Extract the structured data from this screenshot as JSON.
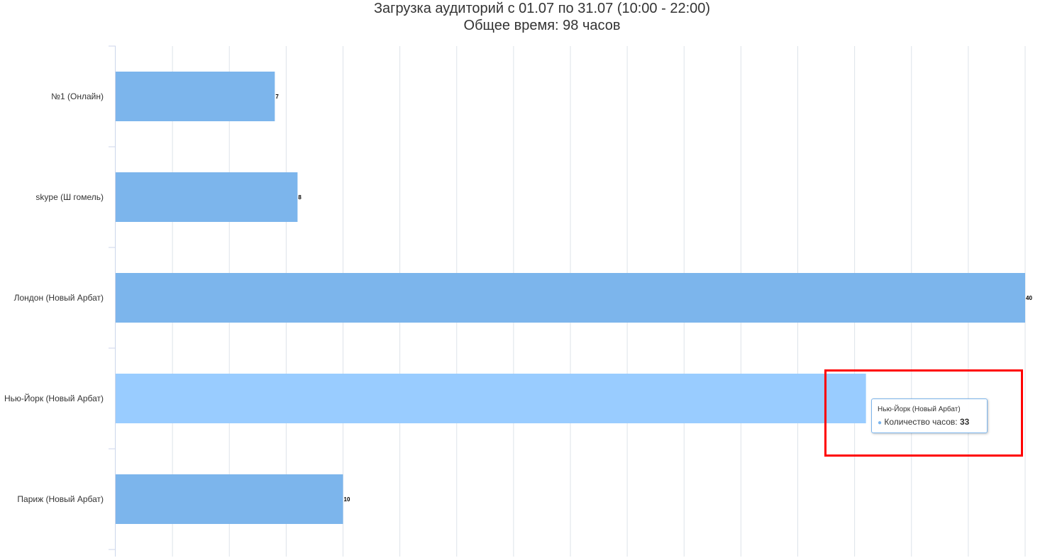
{
  "title_line1": "Загрузка аудиторий с 01.07 по 31.07 (10:00 - 22:00)",
  "title_line2": "Общее время: 98 часов",
  "colors": {
    "bar": "#7cb5ec",
    "bar_hover": "#99ccff",
    "grid": "#dde3ea",
    "highlight": "#ff0000"
  },
  "chart_data": {
    "type": "bar",
    "orientation": "horizontal",
    "categories": [
      "№1 (Онлайн)",
      "skype (Ш гомель)",
      "Лондон (Новый Арбат)",
      "Нью-Йорк (Новый Арбат)",
      "Париж (Новый Арбат)"
    ],
    "series": [
      {
        "name": "Количество часов",
        "values": [
          7,
          8,
          40,
          33,
          10
        ]
      }
    ],
    "data_labels": [
      "7",
      "8",
      "40",
      "",
      "10"
    ],
    "xlim": [
      0,
      40
    ],
    "grid": true,
    "hovered_index": 3
  },
  "tooltip": {
    "title": "Нью-Йорк (Новый Арбат)",
    "series_label": "Количество часов: ",
    "value": "33"
  }
}
